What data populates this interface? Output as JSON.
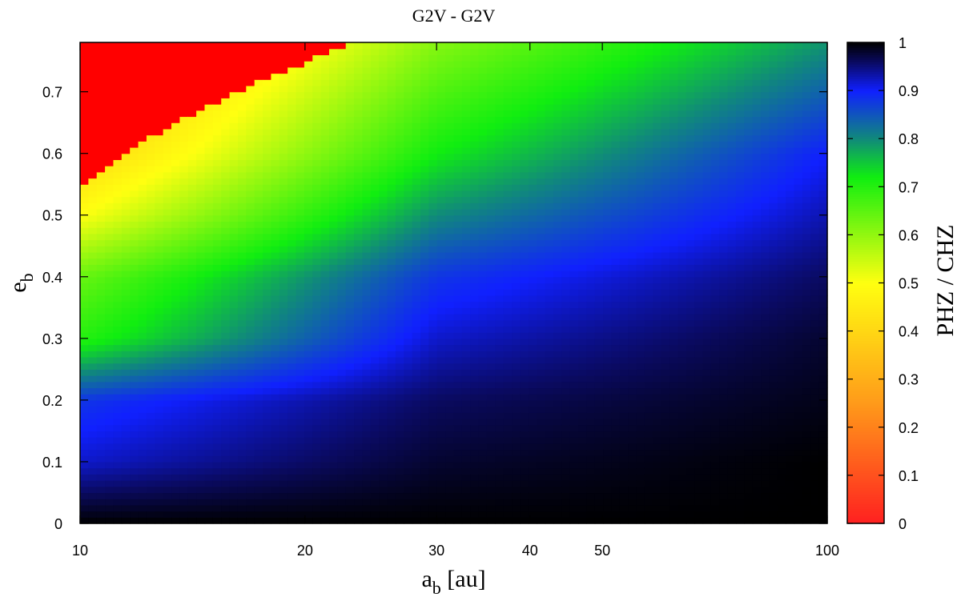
{
  "chart_data": {
    "type": "heatmap",
    "title": "G2V - G2V",
    "xlabel_main": "a",
    "xlabel_sub": "b",
    "xlabel_unit": " [au]",
    "ylabel_main": "e",
    "ylabel_sub": "b",
    "colorbar_label": "PHZ / CHZ",
    "x_scale": "log",
    "xlim": [
      10,
      100
    ],
    "ylim": [
      0,
      0.78
    ],
    "x_ticks": [
      10,
      20,
      30,
      40,
      50,
      100
    ],
    "x_tick_labels": [
      "10",
      "20",
      "30",
      "40",
      "50",
      "100"
    ],
    "y_ticks": [
      0,
      0.1,
      0.2,
      0.3,
      0.4,
      0.5,
      0.6,
      0.7
    ],
    "y_tick_labels": [
      "0",
      "0.1",
      "0.2",
      "0.3",
      "0.4",
      "0.5",
      "0.6",
      "0.7"
    ],
    "colorbar_range": [
      0,
      1
    ],
    "colorbar_ticks": [
      0,
      0.1,
      0.2,
      0.3,
      0.4,
      0.5,
      0.6,
      0.7,
      0.8,
      0.9,
      1
    ],
    "colorbar_tick_labels": [
      "0",
      "0.1",
      "0.2",
      "0.3",
      "0.4",
      "0.5",
      "0.6",
      "0.7",
      "0.8",
      "0.9",
      "1"
    ],
    "colormap": [
      {
        "value": 0.0,
        "color": "#ff2020"
      },
      {
        "value": 0.25,
        "color": "#ff9a1a"
      },
      {
        "value": 0.5,
        "color": "#ffff10"
      },
      {
        "value": 0.72,
        "color": "#10ee10"
      },
      {
        "value": 0.8,
        "color": "#108a7a"
      },
      {
        "value": 0.9,
        "color": "#1020ff"
      },
      {
        "value": 0.96,
        "color": "#0a0a60"
      },
      {
        "value": 1.0,
        "color": "#000000"
      }
    ],
    "unstable_color": "#ff0000",
    "instability_boundary": {
      "a": [
        10,
        10.5,
        11.2,
        12.2,
        13.5,
        15.0,
        16.5,
        18.0,
        19.7,
        21.5,
        23.5
      ],
      "e": [
        0.54,
        0.56,
        0.59,
        0.62,
        0.65,
        0.68,
        0.705,
        0.725,
        0.745,
        0.765,
        0.78
      ]
    },
    "description_levels": {
      "e_values": [
        0.0,
        0.1,
        0.2,
        0.3,
        0.4,
        0.5,
        0.6
      ],
      "a10": [
        1.0,
        0.92,
        0.88,
        0.7,
        0.64,
        0.5,
        0.4
      ],
      "a30": [
        1.0,
        0.98,
        0.96,
        0.92,
        0.88,
        0.8,
        0.72
      ],
      "a100": [
        1.0,
        1.0,
        0.99,
        0.98,
        0.96,
        0.93,
        0.9
      ]
    }
  }
}
